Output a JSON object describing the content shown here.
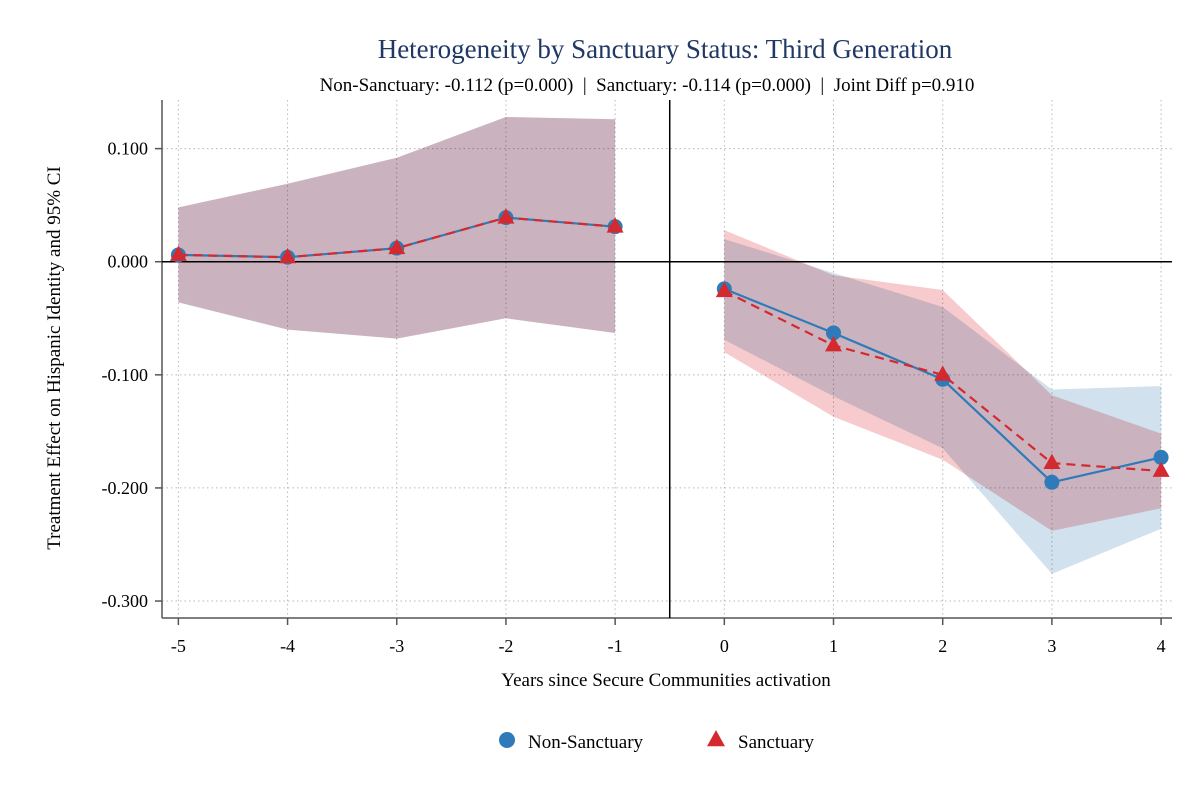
{
  "chart_data": {
    "type": "line",
    "title": "Heterogeneity by Sanctuary Status: Third Generation",
    "subtitle": "Non-Sanctuary: -0.112 (p=0.000)  |  Sanctuary: -0.114 (p=0.000)  |  Joint Diff p=0.910",
    "xlabel": "Years since Secure Communities activation",
    "ylabel": "Treatment Effect on Hispanic Identity and 95% CI",
    "xlim": [
      -5.15,
      4.1
    ],
    "ylim": [
      -0.315,
      0.143
    ],
    "x_ticks": [
      -5,
      -4,
      -3,
      -2,
      -1,
      0,
      1,
      2,
      3,
      4
    ],
    "x_tick_labels": [
      "-5",
      "-4",
      "-3",
      "-2",
      "-1",
      "0",
      "1",
      "2",
      "3",
      "4"
    ],
    "y_ticks": [
      0.1,
      0.0,
      -0.1,
      -0.2,
      -0.3
    ],
    "y_tick_labels": [
      "0.100",
      "0.000",
      "-0.100",
      "-0.200",
      "-0.300"
    ],
    "grid": true,
    "reference_lines": {
      "x": -0.5,
      "y": 0.0
    },
    "legend_position": "bottom",
    "series": [
      {
        "name": "Non-Sanctuary",
        "color": "#2f7ab9",
        "marker": "circle",
        "line_style": "solid",
        "ci_color": "#c9dcea",
        "segments": [
          {
            "x": [
              -5,
              -4,
              -3,
              -2,
              -1
            ],
            "y": [
              0.006,
              0.004,
              0.012,
              0.039,
              0.031
            ],
            "ci_low": [
              -0.036,
              -0.06,
              -0.068,
              -0.05,
              -0.063
            ],
            "ci_high": [
              0.048,
              0.069,
              0.092,
              0.128,
              0.126
            ]
          },
          {
            "x": [
              0,
              1,
              2,
              3,
              4
            ],
            "y": [
              -0.024,
              -0.063,
              -0.104,
              -0.195,
              -0.173
            ],
            "ci_low": [
              -0.069,
              -0.119,
              -0.165,
              -0.276,
              -0.236
            ],
            "ci_high": [
              0.02,
              -0.01,
              -0.04,
              -0.113,
              -0.11
            ]
          }
        ]
      },
      {
        "name": "Sanctuary",
        "color": "#d42a2f",
        "marker": "triangle",
        "line_style": "dashed",
        "ci_color": "#f6c2c4",
        "segments": [
          {
            "x": [
              -5,
              -4,
              -3,
              -2,
              -1
            ],
            "y": [
              0.006,
              0.004,
              0.012,
              0.039,
              0.031
            ],
            "ci_low": [
              -0.036,
              -0.06,
              -0.068,
              -0.05,
              -0.063
            ],
            "ci_high": [
              0.048,
              0.069,
              0.092,
              0.128,
              0.126
            ]
          },
          {
            "x": [
              0,
              1,
              2,
              3,
              4
            ],
            "y": [
              -0.026,
              -0.074,
              -0.1,
              -0.178,
              -0.185
            ],
            "ci_low": [
              -0.08,
              -0.137,
              -0.175,
              -0.238,
              -0.218
            ],
            "ci_high": [
              0.028,
              -0.012,
              -0.025,
              -0.118,
              -0.152
            ]
          }
        ]
      }
    ]
  }
}
